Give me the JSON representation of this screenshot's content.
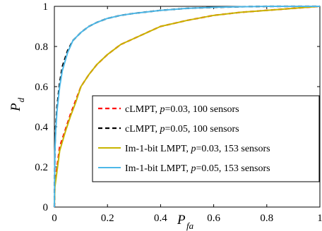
{
  "chart_data": {
    "type": "line",
    "xlabel": "P",
    "xlabel_sub": "fa",
    "ylabel": "P",
    "ylabel_sub": "d",
    "xlim": [
      0,
      1
    ],
    "ylim": [
      0,
      1
    ],
    "xticks": [
      0,
      0.2,
      0.4,
      0.6,
      0.8,
      1
    ],
    "xtick_labels": [
      "0",
      "0.2",
      "0.4",
      "0.6",
      "0.8",
      "1"
    ],
    "yticks": [
      0,
      0.2,
      0.4,
      0.6,
      0.8,
      1
    ],
    "ytick_labels": [
      "0",
      "0.2",
      "0.4",
      "0.6",
      "0.8",
      "1"
    ],
    "grid": false,
    "legend_position": "bottom-right",
    "series": [
      {
        "name": "cLMPT, p=0.03, 100 sensors",
        "name_parts": [
          "cLMPT, ",
          "p",
          "=0.03, 100 sensors"
        ],
        "color": "#ff0000",
        "dash": "dashed",
        "x": [
          0,
          0.002,
          0.01,
          0.02,
          0.04,
          0.06,
          0.08,
          0.1,
          0.13,
          0.16,
          0.2,
          0.25,
          0.3,
          0.35,
          0.4,
          0.5,
          0.6,
          0.7,
          0.8,
          0.9,
          0.95,
          1.0
        ],
        "y": [
          0,
          0.12,
          0.2,
          0.3,
          0.38,
          0.46,
          0.53,
          0.6,
          0.66,
          0.71,
          0.76,
          0.81,
          0.84,
          0.87,
          0.9,
          0.93,
          0.955,
          0.97,
          0.98,
          0.99,
          0.995,
          1.0
        ]
      },
      {
        "name": "cLMPT, p=0.05, 100 sensors",
        "name_parts": [
          "cLMPT, ",
          "p",
          "=0.05, 100 sensors"
        ],
        "color": "#000000",
        "dash": "dashed",
        "x": [
          0,
          0.002,
          0.005,
          0.01,
          0.02,
          0.03,
          0.05,
          0.07,
          0.1,
          0.13,
          0.16,
          0.2,
          0.25,
          0.3,
          0.4,
          0.5,
          0.6,
          0.7,
          0.8,
          0.9,
          1.0
        ],
        "y": [
          0,
          0.3,
          0.4,
          0.5,
          0.62,
          0.7,
          0.78,
          0.83,
          0.87,
          0.9,
          0.92,
          0.94,
          0.955,
          0.965,
          0.98,
          0.99,
          0.995,
          0.998,
          1.0,
          1.0,
          1.0
        ]
      },
      {
        "name": "Im-1-bit LMPT, p=0.03, 153 sensors",
        "name_parts": [
          "Im-1-bit LMPT, ",
          "p",
          "=0.03, 153 sensors"
        ],
        "color": "#c8b400",
        "dash": "solid",
        "x": [
          0,
          0.002,
          0.01,
          0.02,
          0.04,
          0.06,
          0.08,
          0.1,
          0.13,
          0.16,
          0.2,
          0.25,
          0.3,
          0.35,
          0.4,
          0.5,
          0.6,
          0.7,
          0.8,
          0.9,
          0.95,
          1.0
        ],
        "y": [
          0,
          0.1,
          0.18,
          0.28,
          0.37,
          0.45,
          0.52,
          0.6,
          0.66,
          0.71,
          0.76,
          0.81,
          0.84,
          0.87,
          0.9,
          0.93,
          0.955,
          0.97,
          0.98,
          0.99,
          0.995,
          1.0
        ]
      },
      {
        "name": "Im-1-bit LMPT, p=0.05, 153 sensors",
        "name_parts": [
          "Im-1-bit LMPT, ",
          "p",
          "=0.05, 153 sensors"
        ],
        "color": "#4db8e8",
        "dash": "solid",
        "x": [
          0,
          0.002,
          0.005,
          0.01,
          0.02,
          0.03,
          0.05,
          0.07,
          0.1,
          0.13,
          0.16,
          0.2,
          0.25,
          0.3,
          0.4,
          0.5,
          0.6,
          0.7,
          0.8,
          0.9,
          1.0
        ],
        "y": [
          0,
          0.28,
          0.38,
          0.48,
          0.6,
          0.68,
          0.77,
          0.83,
          0.87,
          0.9,
          0.92,
          0.94,
          0.955,
          0.965,
          0.98,
          0.99,
          0.995,
          0.998,
          1.0,
          1.0,
          1.0
        ]
      }
    ]
  }
}
